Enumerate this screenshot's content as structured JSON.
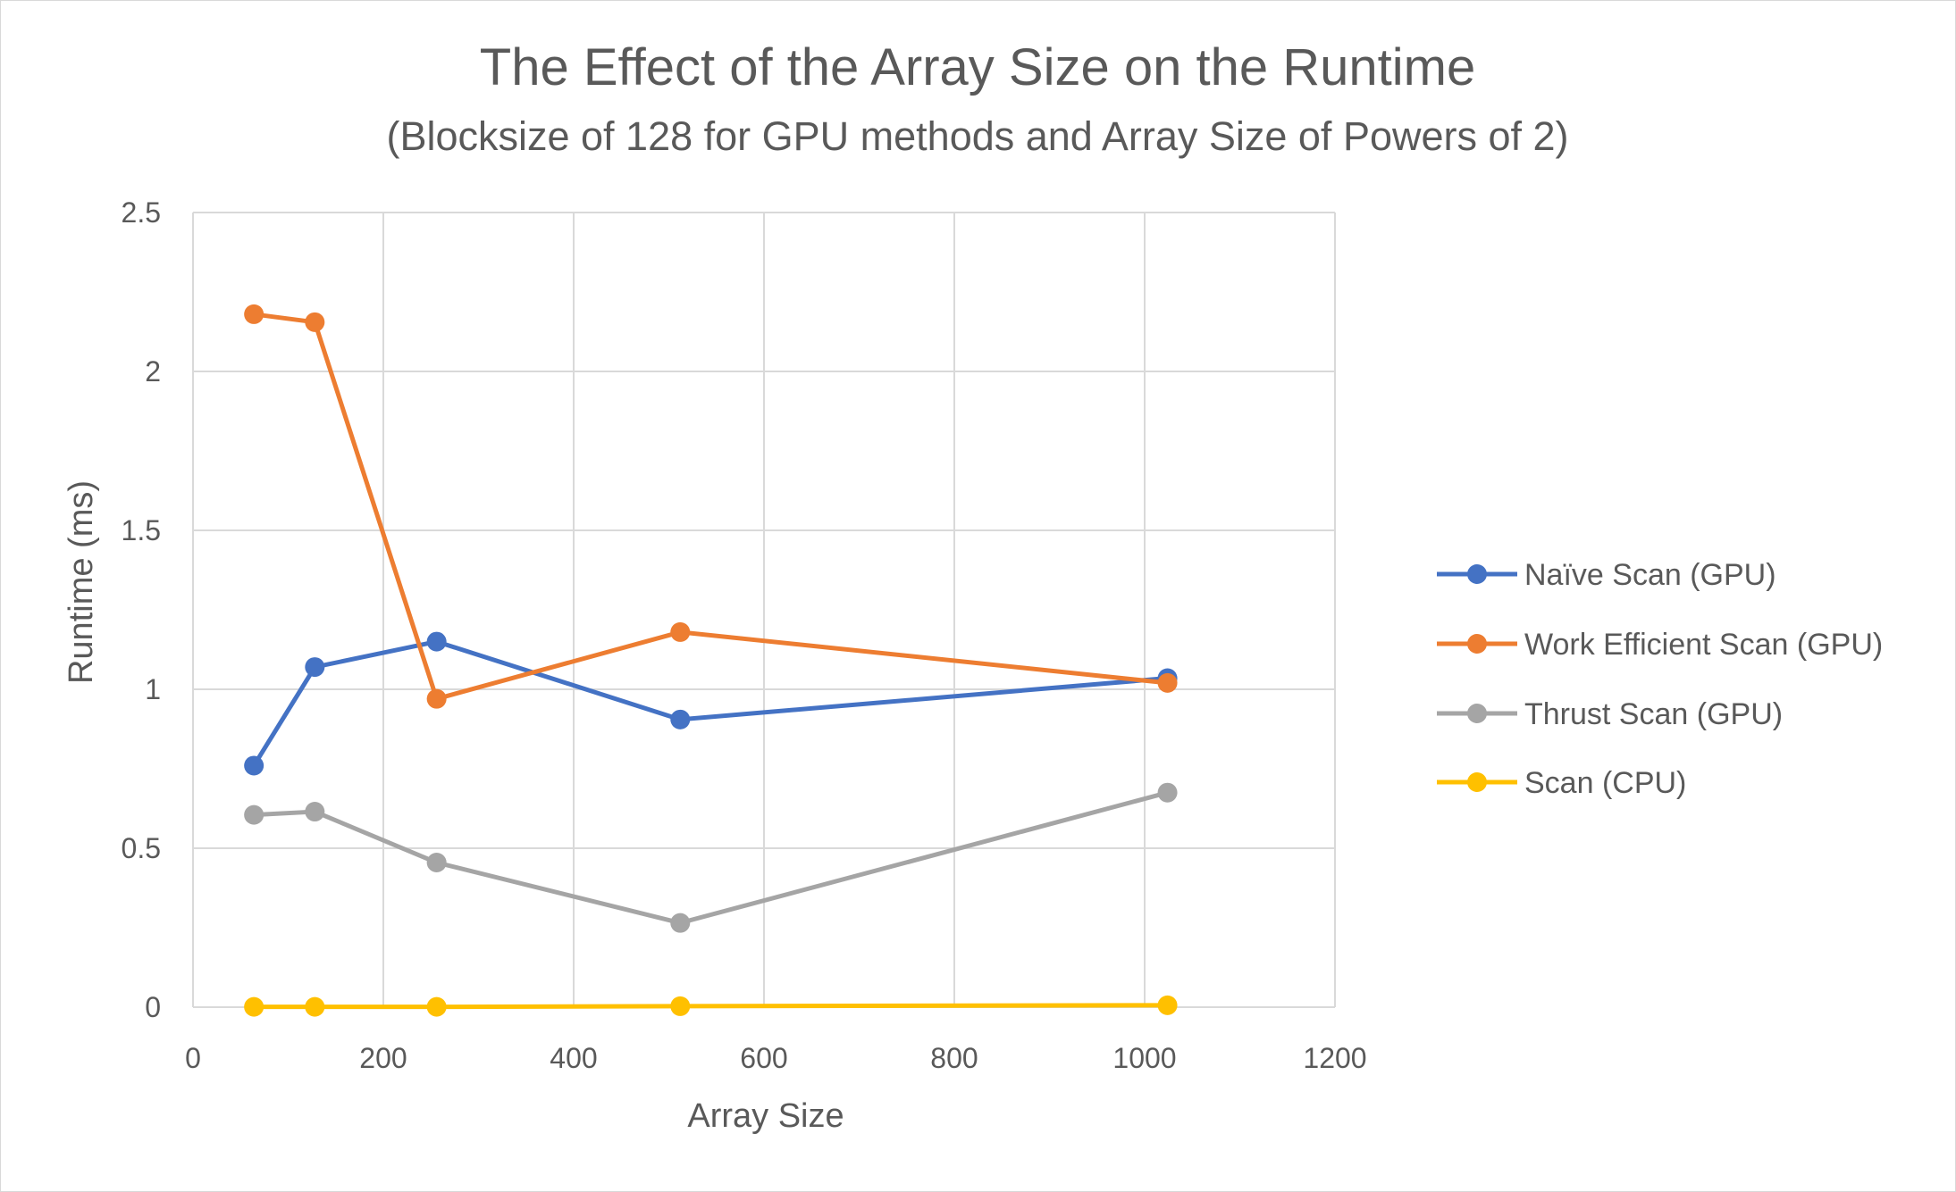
{
  "chart_data": {
    "type": "line",
    "title": "The Effect of the Array Size on the Runtime",
    "subtitle": "(Blocksize of 128 for GPU methods and Array Size of Powers of 2)",
    "xlabel": "Array Size",
    "ylabel": "Runtime (ms)",
    "xlim": [
      0,
      1200
    ],
    "ylim": [
      0,
      2.5
    ],
    "x_ticks": [
      "0",
      "200",
      "400",
      "600",
      "800",
      "1000",
      "1200"
    ],
    "y_ticks": [
      "0",
      "0.5",
      "1",
      "1.5",
      "2",
      "2.5"
    ],
    "x_tick_values": [
      0,
      200,
      400,
      600,
      800,
      1000,
      1200
    ],
    "y_tick_values": [
      0,
      0.5,
      1,
      1.5,
      2,
      2.5
    ],
    "grid": true,
    "legend_position": "right",
    "x": [
      64,
      128,
      256,
      512,
      1024
    ],
    "series": [
      {
        "name": "Naïve Scan (GPU)",
        "color": "#4472c4",
        "values": [
          0.76,
          1.07,
          1.15,
          0.905,
          1.035
        ]
      },
      {
        "name": "Work Efficient Scan (GPU)",
        "color": "#ed7d31",
        "values": [
          2.18,
          2.155,
          0.97,
          1.18,
          1.02
        ]
      },
      {
        "name": "Thrust Scan (GPU)",
        "color": "#a5a5a5",
        "values": [
          0.605,
          0.615,
          0.455,
          0.265,
          0.675
        ]
      },
      {
        "name": "Scan (CPU)",
        "color": "#ffc000",
        "values": [
          0.001,
          0.001,
          0.001,
          0.003,
          0.006
        ]
      }
    ]
  }
}
